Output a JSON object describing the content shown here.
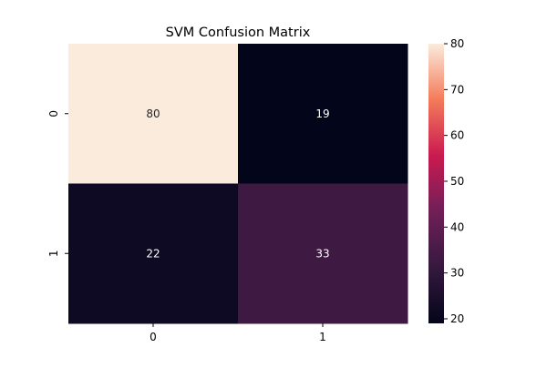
{
  "chart_data": {
    "type": "heatmap",
    "title": "SVM Confusion Matrix",
    "xlabel": "",
    "ylabel": "",
    "x_categories": [
      "0",
      "1"
    ],
    "y_categories": [
      "0",
      "1"
    ],
    "values": [
      [
        80,
        19
      ],
      [
        22,
        33
      ]
    ],
    "annotations": [
      [
        "80",
        "19"
      ],
      [
        "22",
        "33"
      ]
    ],
    "colormap": "rocket",
    "color_range": [
      19,
      80
    ],
    "colorbar_ticks": [
      "20",
      "30",
      "40",
      "50",
      "60",
      "70",
      "80"
    ],
    "legend": "colorbar-right"
  }
}
